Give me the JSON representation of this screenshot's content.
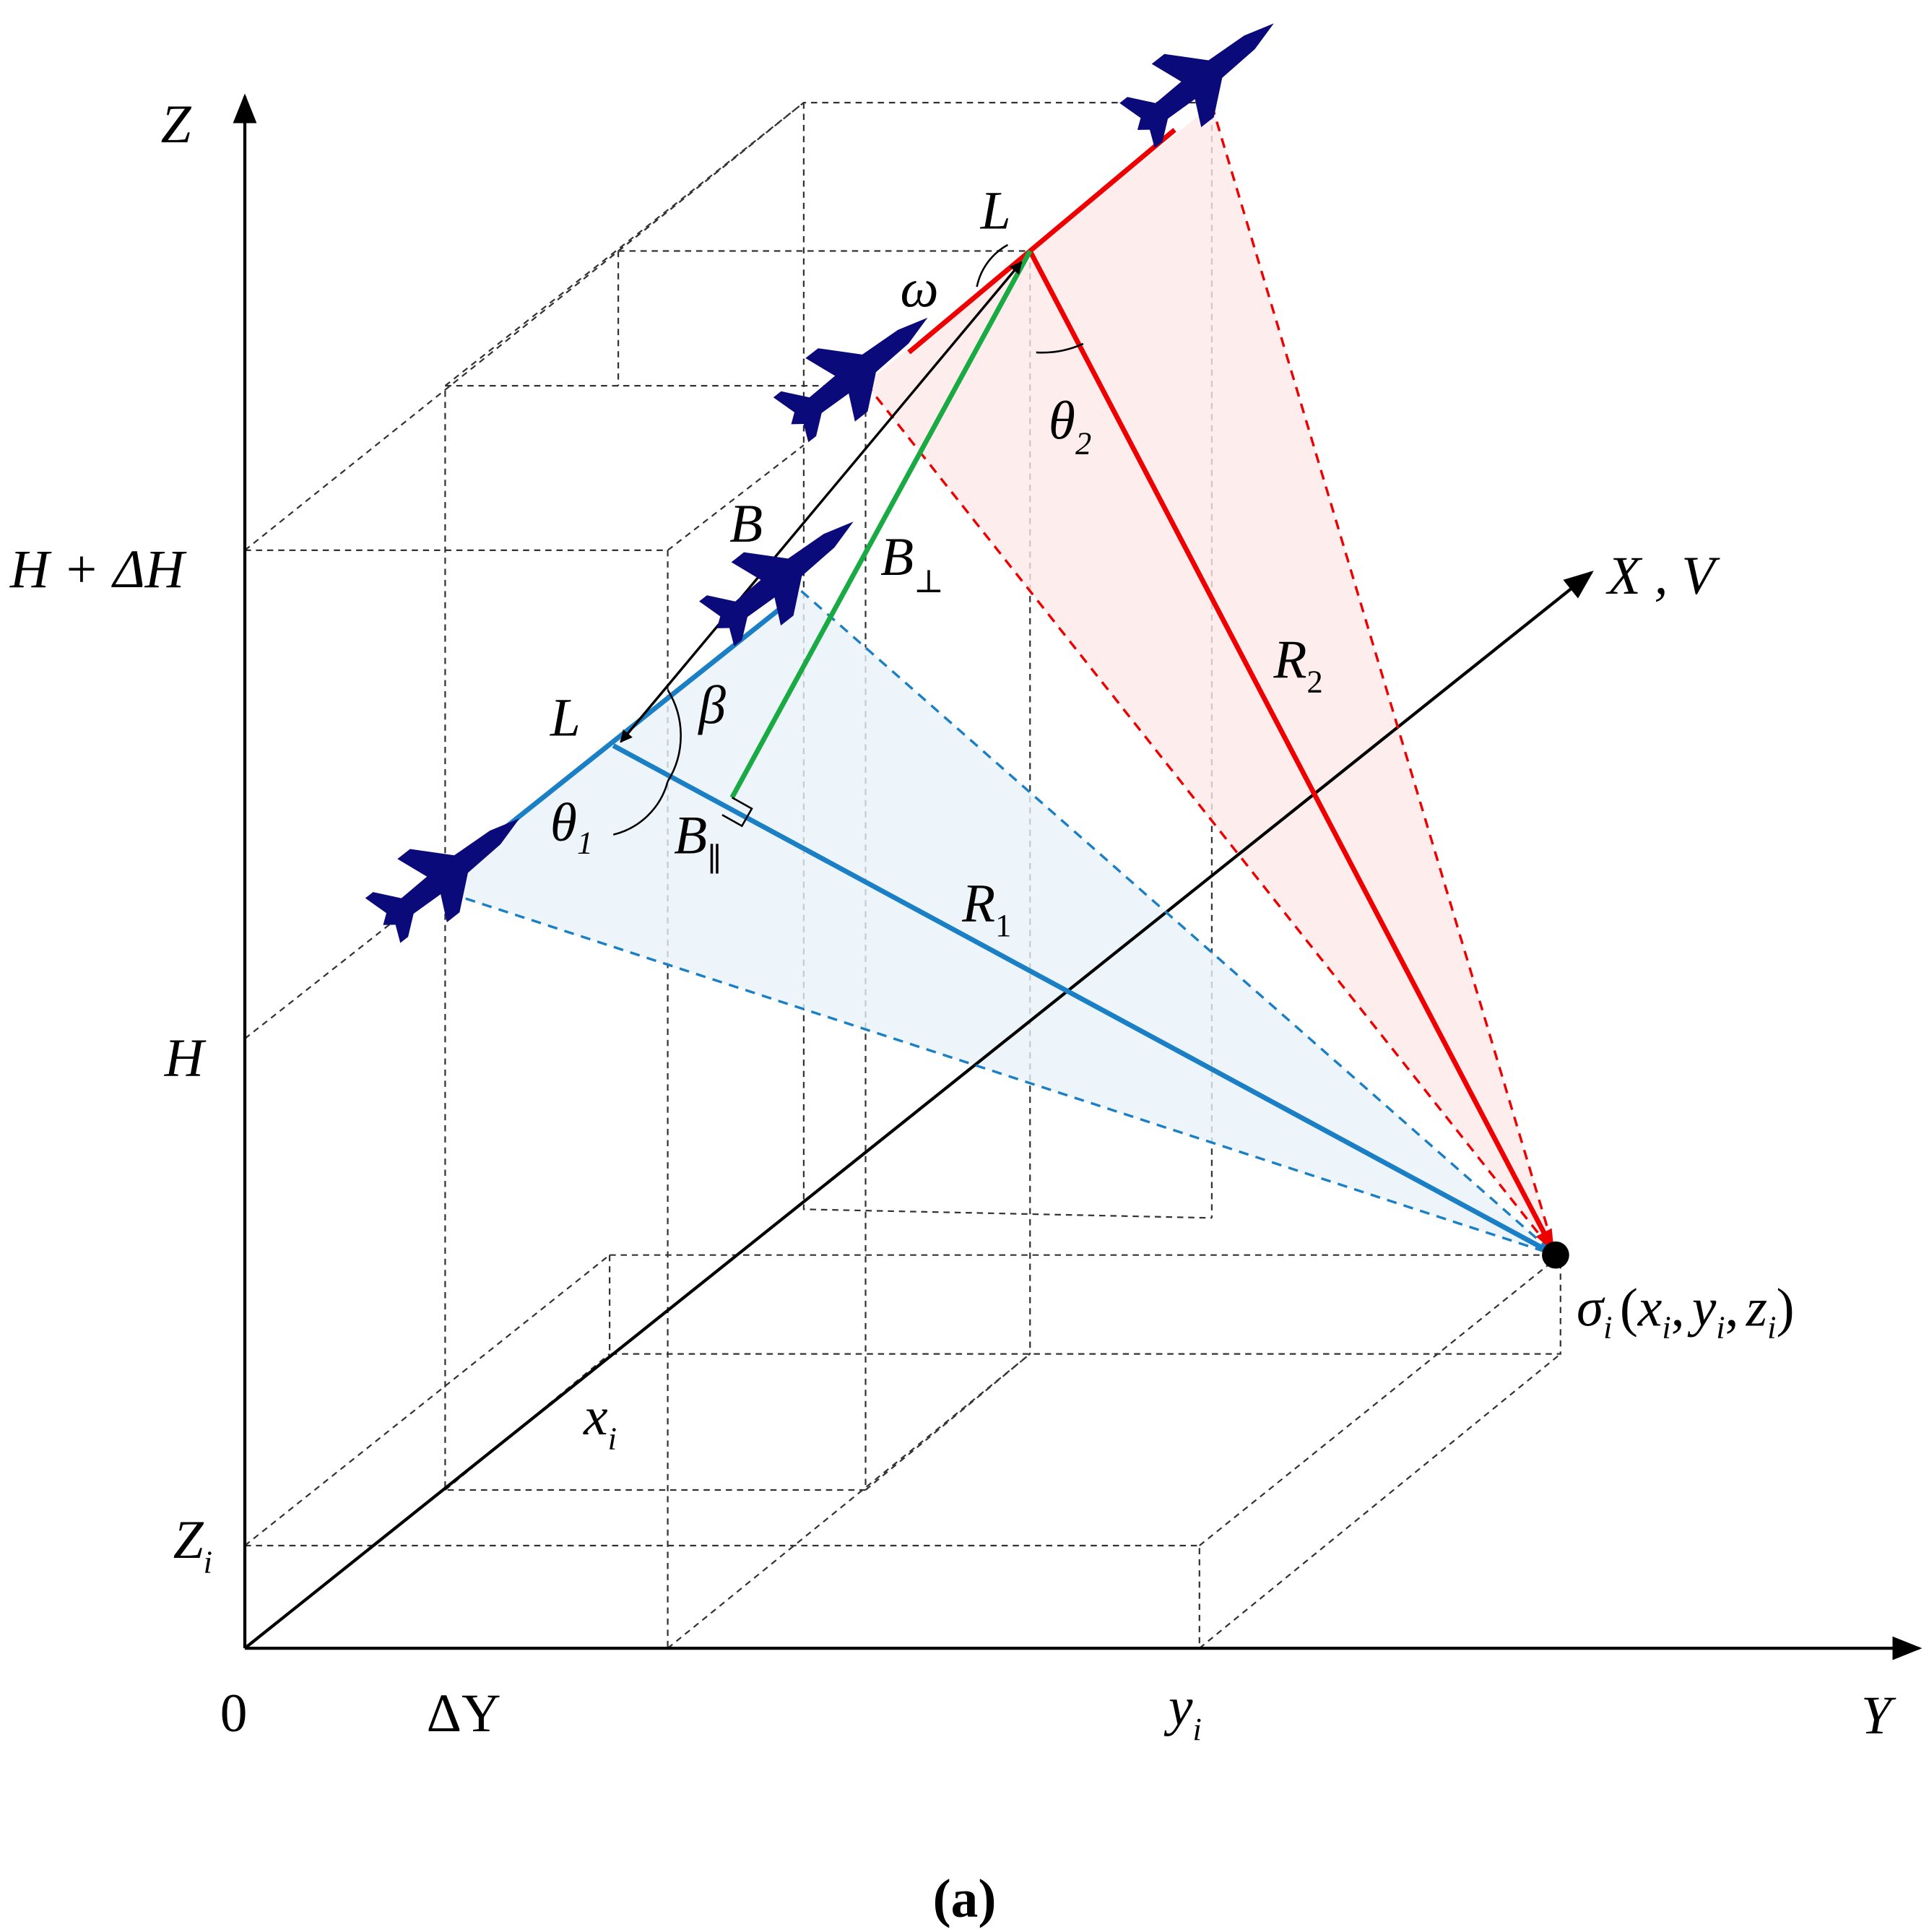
{
  "axes": {
    "z": "Z",
    "y": "Y",
    "x": "X , V",
    "origin": "0"
  },
  "ticks": {
    "h_dh": "H + ΔH",
    "h": "H",
    "zi": {
      "symbol": "Z",
      "sub": "i"
    },
    "dy": "ΔY",
    "yi": {
      "symbol": "y",
      "sub": "i"
    },
    "xi": {
      "symbol": "x",
      "sub": "i"
    }
  },
  "geometry": {
    "L_upper": "L",
    "L_lower": "L",
    "omega": "ω",
    "theta2": {
      "symbol": "θ",
      "sub": "2"
    },
    "theta1": {
      "symbol": "θ",
      "sub": "1"
    },
    "B": "B",
    "B_perp": {
      "symbol": "B",
      "sub": "⊥"
    },
    "B_par": {
      "symbol": "B",
      "sub": "∥"
    },
    "beta": "β",
    "R1": {
      "symbol": "R",
      "sub": "1"
    },
    "R2": {
      "symbol": "R",
      "sub": "2"
    }
  },
  "target": {
    "symbol": "σ",
    "sub": "i",
    "open": "(",
    "sep": ",",
    "close": ")",
    "args": [
      {
        "symbol": "x",
        "sub": "i"
      },
      {
        "symbol": "y",
        "sub": "i"
      },
      {
        "symbol": "z",
        "sub": "i"
      }
    ]
  },
  "caption": "(a)"
}
